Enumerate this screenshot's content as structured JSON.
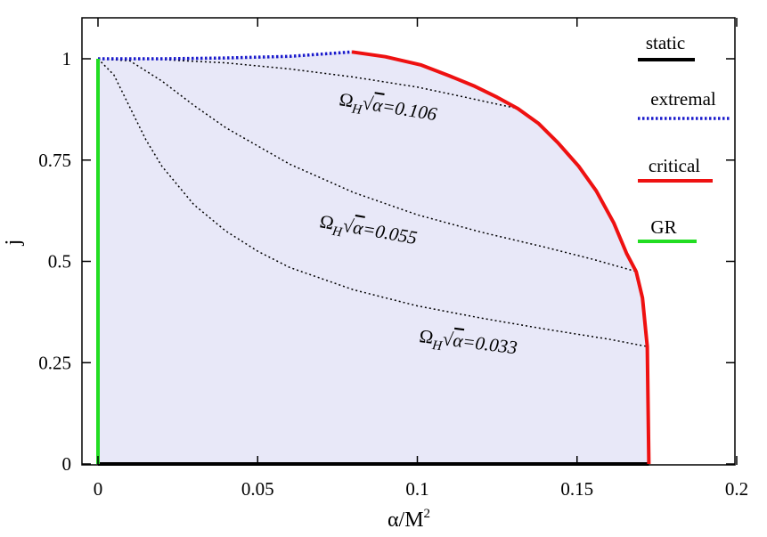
{
  "chart_data": {
    "type": "line",
    "xlabel": "α/M",
    "xlabel_sup": "2",
    "ylabel": "j",
    "xlim": [
      0,
      0.2
    ],
    "ylim": [
      0,
      1.1
    ],
    "x_ticks": [
      "0",
      "0.05",
      "0.1",
      "0.15",
      "0.2"
    ],
    "x_tick_values": [
      0,
      0.05,
      0.1,
      0.15,
      0.2
    ],
    "y_ticks": [
      "0",
      "0.25",
      "0.5",
      "0.75",
      "1"
    ],
    "y_tick_values": [
      0,
      0.25,
      0.5,
      0.75,
      1
    ],
    "grid": false,
    "legend_position": "top-right",
    "region_fill": "#e8e8f8",
    "series": [
      {
        "name": "static",
        "color": "#000000",
        "style": "solid",
        "points": [
          [
            0,
            0
          ],
          [
            0.1725,
            0
          ]
        ]
      },
      {
        "name": "extremal",
        "color": "#1a1acc",
        "style": "dotted",
        "points": [
          [
            0,
            1.0
          ],
          [
            0.02,
            1.0
          ],
          [
            0.04,
            1.002
          ],
          [
            0.06,
            1.006
          ],
          [
            0.0795,
            1.017
          ]
        ]
      },
      {
        "name": "critical",
        "color": "#ee1111",
        "style": "solid",
        "points": [
          [
            0.0795,
            1.017
          ],
          [
            0.09,
            1.005
          ],
          [
            0.101,
            0.985
          ],
          [
            0.11,
            0.958
          ],
          [
            0.118,
            0.932
          ],
          [
            0.125,
            0.905
          ],
          [
            0.1315,
            0.877
          ],
          [
            0.138,
            0.84
          ],
          [
            0.144,
            0.793
          ],
          [
            0.1505,
            0.735
          ],
          [
            0.156,
            0.674
          ],
          [
            0.1615,
            0.595
          ],
          [
            0.1655,
            0.52
          ],
          [
            0.1685,
            0.475
          ],
          [
            0.1705,
            0.41
          ],
          [
            0.172,
            0.29
          ],
          [
            0.1725,
            0.0
          ]
        ]
      },
      {
        "name": "GR",
        "color": "#22dd22",
        "style": "solid",
        "points": [
          [
            0,
            0
          ],
          [
            0,
            1.0
          ]
        ]
      }
    ],
    "contours": [
      {
        "label": "0.106",
        "points": [
          [
            0.0,
            1.0
          ],
          [
            0.02,
            0.998
          ],
          [
            0.04,
            0.99
          ],
          [
            0.06,
            0.975
          ],
          [
            0.08,
            0.955
          ],
          [
            0.1,
            0.93
          ],
          [
            0.115,
            0.905
          ],
          [
            0.1315,
            0.877
          ]
        ]
      },
      {
        "label": "0.055",
        "points": [
          [
            0.0,
            1.0
          ],
          [
            0.01,
            0.995
          ],
          [
            0.02,
            0.945
          ],
          [
            0.03,
            0.885
          ],
          [
            0.04,
            0.83
          ],
          [
            0.06,
            0.74
          ],
          [
            0.08,
            0.67
          ],
          [
            0.1,
            0.615
          ],
          [
            0.12,
            0.572
          ],
          [
            0.14,
            0.535
          ],
          [
            0.155,
            0.505
          ],
          [
            0.1685,
            0.475
          ]
        ]
      },
      {
        "label": "0.033",
        "points": [
          [
            0.0,
            1.0
          ],
          [
            0.005,
            0.96
          ],
          [
            0.01,
            0.88
          ],
          [
            0.015,
            0.8
          ],
          [
            0.02,
            0.735
          ],
          [
            0.03,
            0.64
          ],
          [
            0.04,
            0.575
          ],
          [
            0.05,
            0.525
          ],
          [
            0.06,
            0.485
          ],
          [
            0.08,
            0.43
          ],
          [
            0.1,
            0.39
          ],
          [
            0.12,
            0.36
          ],
          [
            0.14,
            0.333
          ],
          [
            0.16,
            0.308
          ],
          [
            0.172,
            0.29
          ]
        ]
      }
    ],
    "annotations": [
      {
        "prefix": "Ω",
        "sub": "H",
        "radical": "√",
        "var": "α",
        "value": "=0.106"
      },
      {
        "prefix": "Ω",
        "sub": "H",
        "radical": "√",
        "var": "α",
        "value": "=0.055"
      },
      {
        "prefix": "Ω",
        "sub": "H",
        "radical": "√",
        "var": "α",
        "value": "=0.033"
      }
    ]
  }
}
